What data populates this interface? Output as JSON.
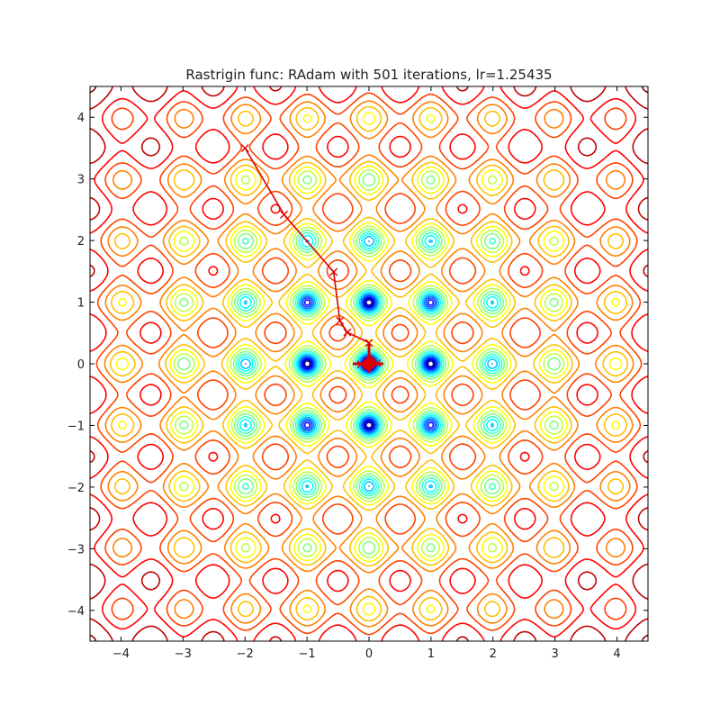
{
  "chart_data": {
    "type": "contour",
    "title": "Rastrigin func: RAdam with 501 iterations, lr=1.25435",
    "function": "rastrigin",
    "optimizer": "RAdam",
    "iterations": 501,
    "lr": 1.25435,
    "xlabel": "",
    "ylabel": "",
    "xlim": [
      -4.5,
      4.5
    ],
    "ylim": [
      -4.5,
      4.5
    ],
    "xticks": [
      -4,
      -3,
      -2,
      -1,
      0,
      1,
      2,
      3,
      4
    ],
    "yticks": [
      -4,
      -3,
      -2,
      -1,
      0,
      1,
      2,
      3,
      4
    ],
    "xtick_labels": [
      "−4",
      "−3",
      "−2",
      "−1",
      "0",
      "1",
      "2",
      "3",
      "4"
    ],
    "ytick_labels": [
      "−4",
      "−3",
      "−2",
      "−1",
      "0",
      "1",
      "2",
      "3",
      "4"
    ],
    "colormap": "jet",
    "grid": false,
    "path_color": "#dd0000",
    "start_point": [
      -2.0,
      3.5
    ],
    "path": [
      {
        "x": -2.0,
        "y": 3.5
      },
      {
        "x": -1.37,
        "y": 2.42
      },
      {
        "x": -0.57,
        "y": 1.49
      },
      {
        "x": -0.47,
        "y": 0.7
      },
      {
        "x": -0.35,
        "y": 0.51
      },
      {
        "x": 0.0,
        "y": 0.34
      },
      {
        "x": 0.02,
        "y": 0.06
      },
      {
        "x": 0.13,
        "y": 0.01
      },
      {
        "x": -0.13,
        "y": -0.01
      },
      {
        "x": 0.05,
        "y": 0.03
      },
      {
        "x": -0.04,
        "y": -0.05
      },
      {
        "x": 0.0,
        "y": 0.0
      }
    ]
  }
}
